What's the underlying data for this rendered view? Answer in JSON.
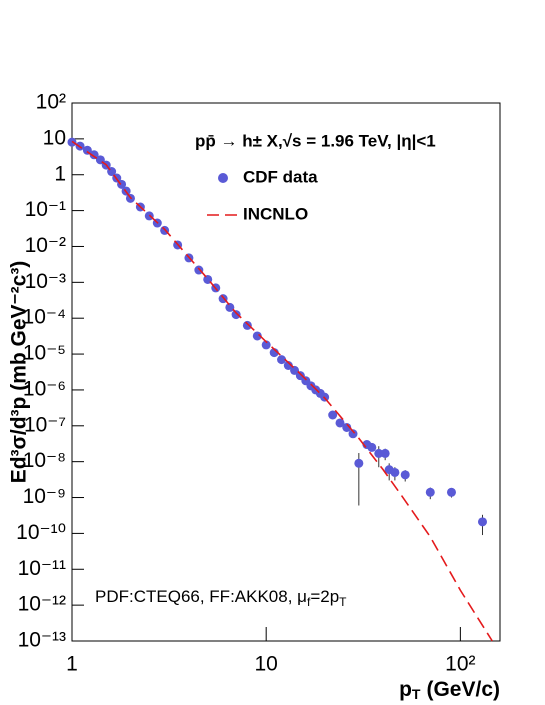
{
  "chart_data": {
    "type": "scatter",
    "xlog": true,
    "ylog": true,
    "xlim": [
      1,
      160
    ],
    "ylim": [
      1e-13,
      100
    ],
    "xticks": [
      1,
      10,
      {
        "value": 100,
        "label": "10²"
      }
    ],
    "yticks": [
      {
        "value": 100,
        "label": "10²"
      },
      10,
      1,
      {
        "value": 0.1,
        "label": "10⁻¹"
      },
      {
        "value": 0.01,
        "label": "10⁻²"
      },
      {
        "value": 0.001,
        "label": "10⁻³"
      },
      {
        "value": 0.0001,
        "label": "10⁻⁴"
      },
      {
        "value": 1e-05,
        "label": "10⁻⁵"
      },
      {
        "value": 1e-06,
        "label": "10⁻⁶"
      },
      {
        "value": 1e-07,
        "label": "10⁻⁷"
      },
      {
        "value": 1e-08,
        "label": "10⁻⁸"
      },
      {
        "value": 1e-09,
        "label": "10⁻⁹"
      },
      {
        "value": 1e-10,
        "label": "10⁻¹⁰"
      },
      {
        "value": 1e-11,
        "label": "10⁻¹¹"
      },
      {
        "value": 1e-12,
        "label": "10⁻¹²"
      },
      {
        "value": 1e-13,
        "label": "10⁻¹³"
      }
    ],
    "ylabel": "Ed³σ/d³p (mb GeV⁻²c³)",
    "xlabel": "p",
    "xlabel_sub": "T",
    "xlabel_unit": "(GeV/c)",
    "annotation": "pp̄ → h± X,√s = 1.96 TeV, |η|<1",
    "note_parts": [
      "PDF:CTEQ66, FF:AKK08, μ",
      "f",
      "=2p",
      "T"
    ],
    "series": [
      {
        "name": "CDF data",
        "color": "#5a5ad6",
        "x": [
          1.0,
          1.1,
          1.2,
          1.3,
          1.4,
          1.5,
          1.6,
          1.7,
          1.8,
          1.9,
          2.0,
          2.25,
          2.5,
          2.75,
          3.0,
          3.5,
          4.0,
          4.5,
          5.0,
          5.5,
          6.0,
          6.5,
          7.0,
          8.0,
          9.0,
          10,
          11,
          12,
          13,
          14,
          15,
          16,
          17,
          18,
          19,
          20,
          22,
          24,
          26,
          28,
          30,
          33,
          35,
          38,
          41,
          43,
          46,
          52,
          70,
          90,
          130
        ],
        "values": [
          8.1,
          6.3,
          4.8,
          3.6,
          2.6,
          1.86,
          1.23,
          0.81,
          0.54,
          0.35,
          0.22,
          0.126,
          0.071,
          0.045,
          0.028,
          0.011,
          0.0048,
          0.0022,
          0.0012,
          0.0007,
          0.00035,
          0.0002,
          0.000126,
          6.3e-05,
          3.2e-05,
          1.8e-05,
          1.1e-05,
          7e-06,
          4.8e-06,
          3.5e-06,
          2.5e-06,
          1.8e-06,
          1.3e-06,
          1e-06,
          8e-07,
          6.3e-07,
          2e-07,
          1.2e-07,
          9e-08,
          6e-08,
          9e-09,
          3e-08,
          2.5e-08,
          1.7e-08,
          1.7e-08,
          6e-09,
          5e-09,
          4.3e-09,
          1.4e-09,
          1.4e-09,
          2.1e-10
        ],
        "errors": [
          null,
          null,
          null,
          null,
          null,
          null,
          null,
          null,
          null,
          null,
          null,
          null,
          null,
          null,
          null,
          null,
          null,
          null,
          null,
          null,
          null,
          null,
          null,
          null,
          null,
          null,
          null,
          null,
          null,
          null,
          null,
          null,
          null,
          null,
          null,
          null,
          null,
          null,
          null,
          null,
          8.4e-09,
          5e-09,
          5e-09,
          1e-08,
          6e-09,
          3e-09,
          2e-09,
          1.5e-09,
          5e-10,
          4e-10,
          1.2e-10
        ]
      },
      {
        "name": "INCNLO",
        "color": "#e41a1c",
        "style": "dashed",
        "x": [
          1,
          1.5,
          2,
          3,
          4,
          5,
          7,
          10,
          15,
          20,
          30,
          40,
          50,
          70,
          100,
          146
        ],
        "values": [
          8.5,
          1.9,
          0.23,
          0.03,
          0.005,
          0.00125,
          0.00014,
          2.2e-05,
          2.8e-06,
          6e-07,
          4.5e-08,
          6e-09,
          1.1e-09,
          8e-11,
          2.6e-12,
          1e-13
        ]
      }
    ]
  }
}
